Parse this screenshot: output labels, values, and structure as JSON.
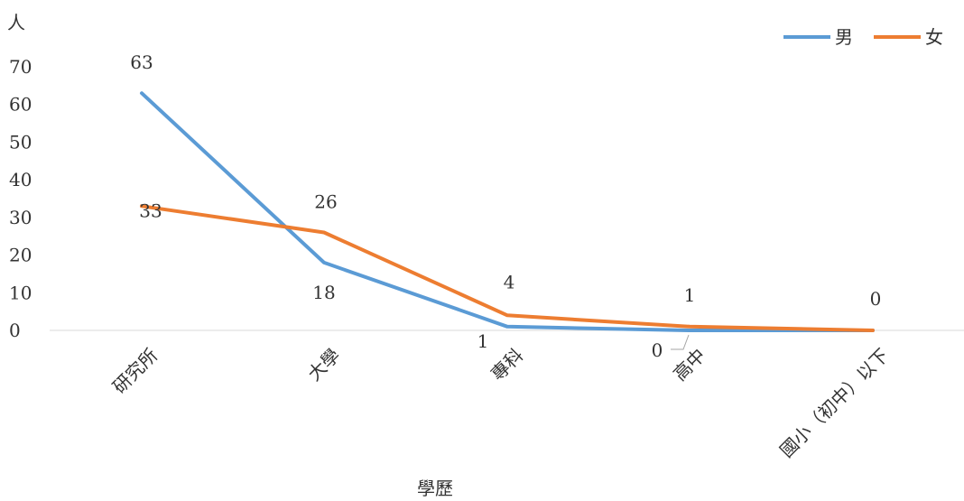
{
  "chart_data": {
    "type": "line",
    "title": "",
    "xlabel": "學歷",
    "ylabel": "人",
    "categories": [
      "研究所",
      "大學",
      "專科",
      "高中",
      "國小（初中）以下"
    ],
    "series": [
      {
        "name": "男",
        "values": [
          63,
          18,
          1,
          0,
          0
        ],
        "color": "#5B9BD5"
      },
      {
        "name": "女",
        "values": [
          33,
          26,
          4,
          1,
          0
        ],
        "color": "#ED7D31"
      }
    ],
    "ylim": [
      0,
      70
    ],
    "yticks": [
      0,
      10,
      20,
      30,
      40,
      50,
      60,
      70
    ],
    "grid": false,
    "legend": "top-right"
  }
}
